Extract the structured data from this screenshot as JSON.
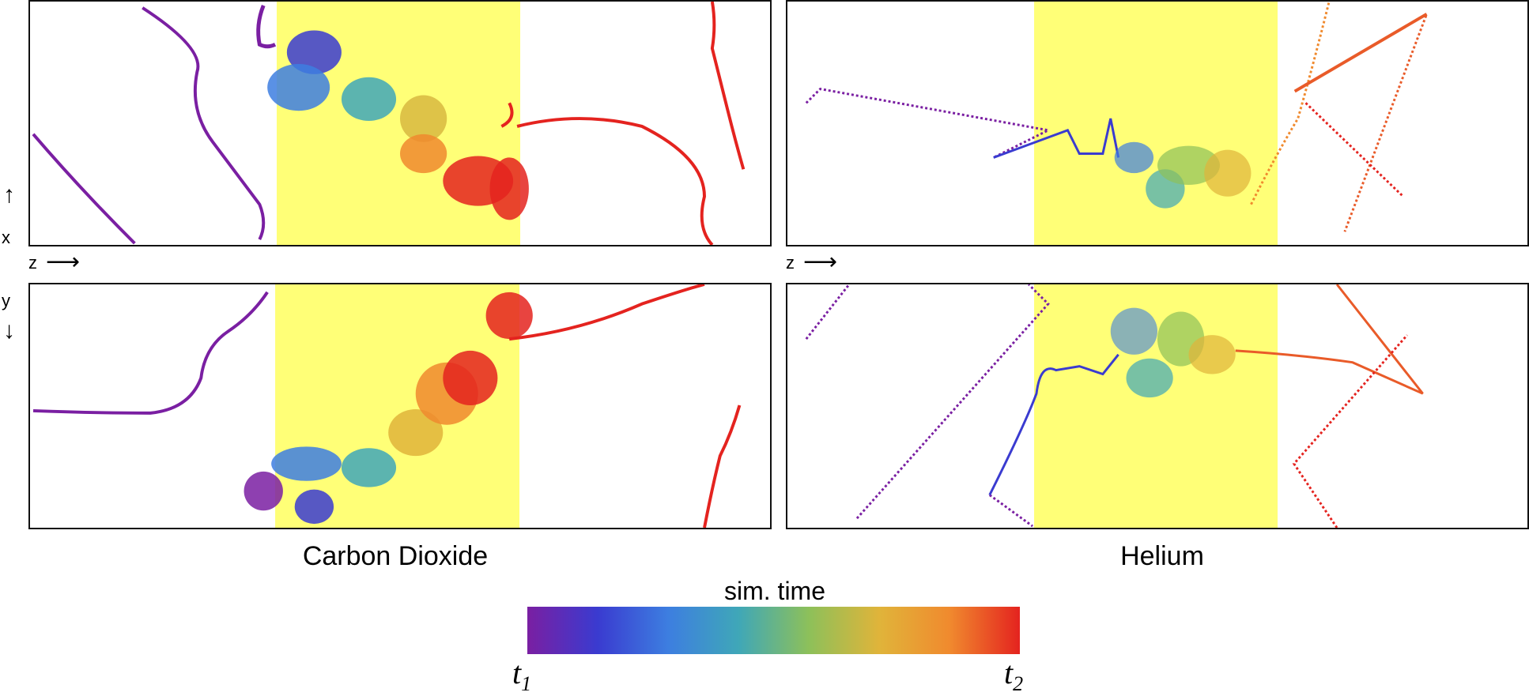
{
  "axes": {
    "x": "x",
    "z_left": "z",
    "z_right": "z",
    "y": "y"
  },
  "captions": {
    "left": "Carbon Dioxide",
    "right": "Helium"
  },
  "colorbar": {
    "title": "sim. time",
    "t1_base": "t",
    "t1_sub": "1",
    "t2_base": "t",
    "t2_sub": "2",
    "colors": [
      "#7a1fa2",
      "#3a3bd0",
      "#3d7ee0",
      "#3fa7b8",
      "#8dc05a",
      "#e0b43a",
      "#f08a2e",
      "#e4231f"
    ]
  },
  "colors": {
    "slab": "#ffff77",
    "frame": "#111111"
  }
}
